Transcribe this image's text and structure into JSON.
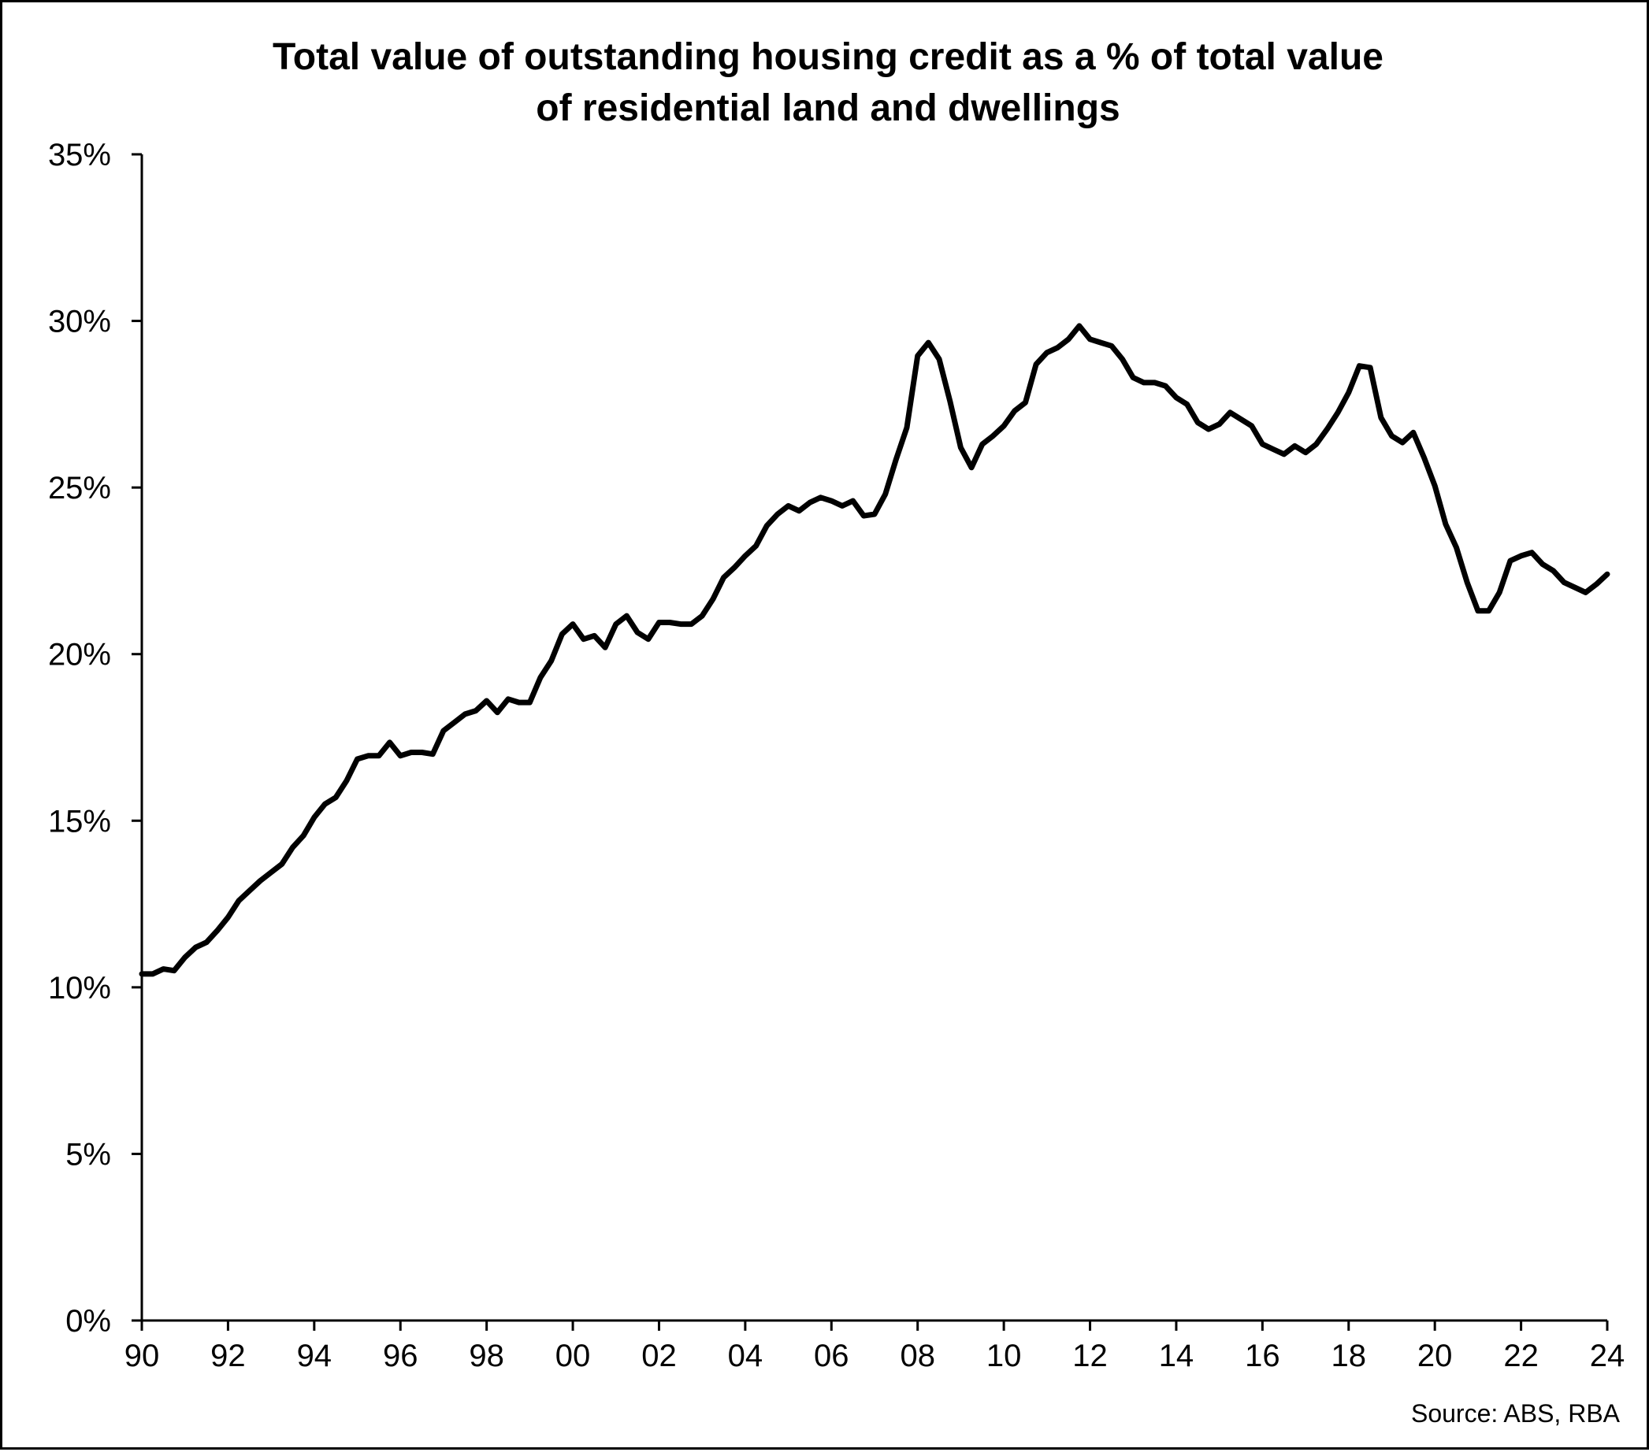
{
  "chart_data": {
    "type": "line",
    "title": "Total value of outstanding housing credit as a % of total value of residential land and dwellings",
    "title_lines": [
      "Total value of outstanding housing credit as a % of total value",
      "of residential land and dwellings"
    ],
    "xlabel": "",
    "ylabel": "",
    "xlim": [
      1990,
      2024
    ],
    "ylim": [
      0,
      35
    ],
    "y_ticks": [
      0,
      5,
      10,
      15,
      20,
      25,
      30,
      35
    ],
    "y_tick_labels": [
      "0%",
      "5%",
      "10%",
      "15%",
      "20%",
      "25%",
      "30%",
      "35%"
    ],
    "x_ticks": [
      1990,
      1992,
      1994,
      1996,
      1998,
      2000,
      2002,
      2004,
      2006,
      2008,
      2010,
      2012,
      2014,
      2016,
      2018,
      2020,
      2022,
      2024
    ],
    "x_tick_labels": [
      "90",
      "92",
      "94",
      "96",
      "98",
      "00",
      "02",
      "04",
      "06",
      "08",
      "10",
      "12",
      "14",
      "16",
      "18",
      "20",
      "22",
      "24"
    ],
    "grid": false,
    "legend": "none",
    "line_color": "#000000",
    "source": "Source: ABS, RBA",
    "series": [
      {
        "x": [
          1990.0,
          1990.25,
          1990.5,
          1990.75,
          1991.0,
          1991.25,
          1991.5,
          1991.75,
          1992.0,
          1992.25,
          1992.5,
          1992.75,
          1993.0,
          1993.25,
          1993.5,
          1993.75,
          1994.0,
          1994.25,
          1994.5,
          1994.75,
          1995.0,
          1995.25,
          1995.5,
          1995.75,
          1996.0,
          1996.25,
          1996.5,
          1996.75,
          1997.0,
          1997.25,
          1997.5,
          1997.75,
          1998.0,
          1998.25,
          1998.5,
          1998.75,
          1999.0,
          1999.25,
          1999.5,
          1999.75,
          2000.0,
          2000.25,
          2000.5,
          2000.75,
          2001.0,
          2001.25,
          2001.5,
          2001.75,
          2002.0,
          2002.25,
          2002.5,
          2002.75,
          2003.0,
          2003.25,
          2003.5,
          2003.75,
          2004.0,
          2004.25,
          2004.5,
          2004.75,
          2005.0,
          2005.25,
          2005.5,
          2005.75,
          2006.0,
          2006.25,
          2006.5,
          2006.75,
          2007.0,
          2007.25,
          2007.5,
          2007.75,
          2008.0,
          2008.25,
          2008.5,
          2008.75,
          2009.0,
          2009.25,
          2009.5,
          2009.75,
          2010.0,
          2010.25,
          2010.5,
          2010.75,
          2011.0,
          2011.25,
          2011.5,
          2011.75,
          2012.0,
          2012.25,
          2012.5,
          2012.75,
          2013.0,
          2013.25,
          2013.5,
          2013.75,
          2014.0,
          2014.25,
          2014.5,
          2014.75,
          2015.0,
          2015.25,
          2015.5,
          2015.75,
          2016.0,
          2016.25,
          2016.5,
          2016.75,
          2017.0,
          2017.25,
          2017.5,
          2017.75,
          2018.0,
          2018.25,
          2018.5,
          2018.75,
          2019.0,
          2019.25,
          2019.5,
          2019.75,
          2020.0,
          2020.25,
          2020.5,
          2020.75,
          2021.0,
          2021.25,
          2021.5,
          2021.75,
          2022.0,
          2022.25,
          2022.5,
          2022.75,
          2023.0,
          2023.25,
          2023.5,
          2023.75,
          2024.0
        ],
        "values": [
          10.4,
          10.4,
          10.55,
          10.5,
          10.9,
          11.2,
          11.35,
          11.7,
          12.1,
          12.6,
          12.9,
          13.2,
          13.45,
          13.7,
          14.2,
          14.55,
          15.1,
          15.5,
          15.7,
          16.2,
          16.85,
          16.95,
          16.95,
          17.35,
          16.95,
          17.05,
          17.05,
          17.0,
          17.7,
          17.95,
          18.2,
          18.3,
          18.6,
          18.25,
          18.65,
          18.55,
          18.55,
          19.3,
          19.8,
          20.6,
          20.9,
          20.45,
          20.55,
          20.2,
          20.9,
          21.15,
          20.65,
          20.45,
          20.95,
          20.95,
          20.9,
          20.9,
          21.15,
          21.65,
          22.3,
          22.6,
          22.95,
          23.25,
          23.85,
          24.2,
          24.45,
          24.3,
          24.55,
          24.7,
          24.6,
          24.45,
          24.6,
          24.15,
          24.2,
          24.8,
          25.85,
          26.8,
          28.95,
          29.35,
          28.85,
          27.6,
          26.2,
          25.6,
          26.3,
          26.55,
          26.85,
          27.3,
          27.55,
          28.7,
          29.05,
          29.2,
          29.45,
          29.85,
          29.45,
          29.35,
          29.25,
          28.85,
          28.3,
          28.15,
          28.15,
          28.05,
          27.7,
          27.5,
          26.95,
          26.75,
          26.9,
          27.25,
          27.05,
          26.85,
          26.3,
          26.15,
          26.0,
          26.25,
          26.05,
          26.3,
          26.75,
          27.25,
          27.85,
          28.65,
          28.6,
          27.1,
          26.55,
          26.35,
          26.65,
          25.9,
          25.05,
          23.9,
          23.2,
          22.15,
          21.3,
          21.3,
          21.85,
          22.8,
          22.95,
          23.05,
          22.7,
          22.5,
          22.15,
          22.0,
          21.85,
          22.1,
          22.4
        ]
      }
    ]
  }
}
